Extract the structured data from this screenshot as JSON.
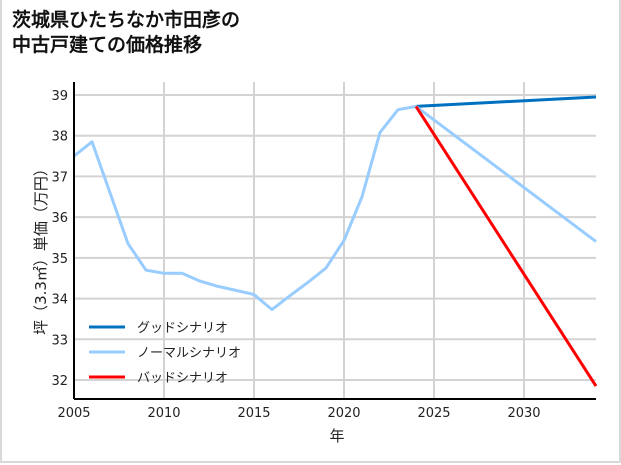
{
  "title_line1": "茨城県ひたちなか市田彦の",
  "title_line2": "中古戸建ての価格推移",
  "chart_data": {
    "type": "line",
    "title": "茨城県ひたちなか市田彦の中古戸建ての価格推移",
    "xlabel": "年",
    "ylabel": "坪（3.3㎡）単価（万円）",
    "xlim": [
      2005,
      2034
    ],
    "ylim": [
      31.5,
      39.3
    ],
    "x_ticks": [
      2005,
      2010,
      2015,
      2020,
      2025,
      2030
    ],
    "y_ticks": [
      32,
      33,
      34,
      35,
      36,
      37,
      38,
      39
    ],
    "grid": true,
    "legend_position": "lower left",
    "series": [
      {
        "name": "グッドシナリオ",
        "color": "#0070c0",
        "x": [
          2024,
          2034
        ],
        "values": [
          38.72,
          38.95
        ]
      },
      {
        "name": "ノーマルシナリオ",
        "color": "#99ccff",
        "x": [
          2005,
          2006,
          2007,
          2008,
          2009,
          2010,
          2011,
          2012,
          2013,
          2014,
          2015,
          2016,
          2017,
          2018,
          2019,
          2020,
          2021,
          2022,
          2023,
          2024,
          2034
        ],
        "values": [
          37.5,
          37.85,
          36.6,
          35.35,
          34.7,
          34.62,
          34.62,
          34.43,
          34.3,
          34.2,
          34.1,
          33.73,
          34.07,
          34.4,
          34.75,
          35.43,
          36.5,
          38.08,
          38.64,
          38.72,
          35.4
        ]
      },
      {
        "name": "バッドシナリオ",
        "color": "#ff0000",
        "x": [
          2024,
          2034
        ],
        "values": [
          38.72,
          31.85
        ]
      }
    ]
  }
}
